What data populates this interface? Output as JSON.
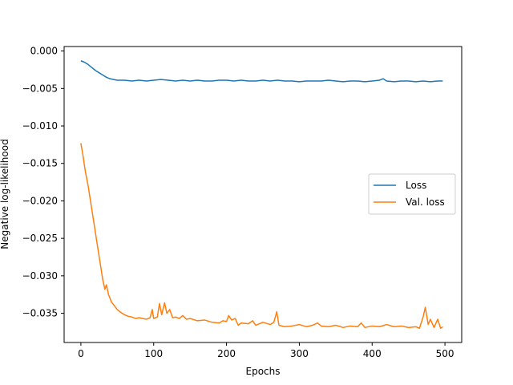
{
  "chart_data": {
    "type": "line",
    "title": "",
    "xlabel": "Epochs",
    "ylabel": "Negative log-likelihood",
    "xlim": [
      -23,
      523
    ],
    "ylim": [
      -0.0389,
      0.0006
    ],
    "xticks": [
      0,
      100,
      200,
      300,
      400,
      500
    ],
    "xtick_labels": [
      "0",
      "100",
      "200",
      "300",
      "400",
      "500"
    ],
    "yticks": [
      0.0,
      -0.005,
      -0.01,
      -0.015,
      -0.02,
      -0.025,
      -0.03,
      -0.035
    ],
    "ytick_labels": [
      "0.000",
      "−0.005",
      "−0.010",
      "−0.015",
      "−0.020",
      "−0.025",
      "−0.030",
      "−0.035"
    ],
    "grid": false,
    "legend_position": "center-right",
    "series": [
      {
        "name": "Loss",
        "color": "#1f77b4",
        "points": [
          [
            0,
            -0.0013
          ],
          [
            5,
            -0.0015
          ],
          [
            10,
            -0.0018
          ],
          [
            15,
            -0.0022
          ],
          [
            20,
            -0.0026
          ],
          [
            25,
            -0.0029
          ],
          [
            30,
            -0.0032
          ],
          [
            35,
            -0.0035
          ],
          [
            40,
            -0.0037
          ],
          [
            45,
            -0.0038
          ],
          [
            50,
            -0.0039
          ],
          [
            60,
            -0.0039
          ],
          [
            70,
            -0.004
          ],
          [
            80,
            -0.0039
          ],
          [
            90,
            -0.004
          ],
          [
            100,
            -0.0039
          ],
          [
            110,
            -0.0038
          ],
          [
            120,
            -0.0039
          ],
          [
            130,
            -0.004
          ],
          [
            140,
            -0.0039
          ],
          [
            150,
            -0.004
          ],
          [
            160,
            -0.0039
          ],
          [
            170,
            -0.004
          ],
          [
            180,
            -0.004
          ],
          [
            190,
            -0.0039
          ],
          [
            200,
            -0.0039
          ],
          [
            210,
            -0.004
          ],
          [
            220,
            -0.0039
          ],
          [
            230,
            -0.004
          ],
          [
            240,
            -0.004
          ],
          [
            250,
            -0.0039
          ],
          [
            260,
            -0.004
          ],
          [
            270,
            -0.0039
          ],
          [
            280,
            -0.004
          ],
          [
            290,
            -0.004
          ],
          [
            300,
            -0.0041
          ],
          [
            310,
            -0.004
          ],
          [
            320,
            -0.004
          ],
          [
            330,
            -0.004
          ],
          [
            340,
            -0.0039
          ],
          [
            350,
            -0.004
          ],
          [
            360,
            -0.0041
          ],
          [
            370,
            -0.004
          ],
          [
            380,
            -0.004
          ],
          [
            390,
            -0.0041
          ],
          [
            400,
            -0.004
          ],
          [
            410,
            -0.0039
          ],
          [
            415,
            -0.0037
          ],
          [
            420,
            -0.004
          ],
          [
            430,
            -0.0041
          ],
          [
            440,
            -0.004
          ],
          [
            450,
            -0.004
          ],
          [
            460,
            -0.0041
          ],
          [
            470,
            -0.004
          ],
          [
            480,
            -0.0041
          ],
          [
            490,
            -0.004
          ],
          [
            497,
            -0.004
          ]
        ]
      },
      {
        "name": "Val. loss",
        "color": "#ff7f0e",
        "points": [
          [
            0,
            -0.0123
          ],
          [
            3,
            -0.014
          ],
          [
            6,
            -0.016
          ],
          [
            10,
            -0.018
          ],
          [
            14,
            -0.0205
          ],
          [
            18,
            -0.023
          ],
          [
            22,
            -0.0255
          ],
          [
            26,
            -0.028
          ],
          [
            30,
            -0.0305
          ],
          [
            33,
            -0.0318
          ],
          [
            35,
            -0.0312
          ],
          [
            38,
            -0.0325
          ],
          [
            42,
            -0.0335
          ],
          [
            46,
            -0.034
          ],
          [
            50,
            -0.0345
          ],
          [
            55,
            -0.0349
          ],
          [
            60,
            -0.0352
          ],
          [
            65,
            -0.0354
          ],
          [
            70,
            -0.0355
          ],
          [
            75,
            -0.0357
          ],
          [
            80,
            -0.0356
          ],
          [
            85,
            -0.0357
          ],
          [
            90,
            -0.0358
          ],
          [
            95,
            -0.0356
          ],
          [
            98,
            -0.0345
          ],
          [
            100,
            -0.0357
          ],
          [
            105,
            -0.0355
          ],
          [
            108,
            -0.0337
          ],
          [
            111,
            -0.0352
          ],
          [
            115,
            -0.0336
          ],
          [
            118,
            -0.035
          ],
          [
            122,
            -0.0345
          ],
          [
            126,
            -0.0356
          ],
          [
            130,
            -0.0355
          ],
          [
            135,
            -0.0357
          ],
          [
            140,
            -0.0353
          ],
          [
            145,
            -0.0358
          ],
          [
            150,
            -0.0357
          ],
          [
            160,
            -0.036
          ],
          [
            170,
            -0.0359
          ],
          [
            180,
            -0.0362
          ],
          [
            190,
            -0.0363
          ],
          [
            195,
            -0.036
          ],
          [
            200,
            -0.0361
          ],
          [
            203,
            -0.0353
          ],
          [
            207,
            -0.0359
          ],
          [
            212,
            -0.0357
          ],
          [
            216,
            -0.0366
          ],
          [
            220,
            -0.0363
          ],
          [
            230,
            -0.0364
          ],
          [
            236,
            -0.036
          ],
          [
            240,
            -0.0366
          ],
          [
            250,
            -0.0362
          ],
          [
            260,
            -0.0365
          ],
          [
            265,
            -0.0362
          ],
          [
            269,
            -0.0348
          ],
          [
            272,
            -0.0366
          ],
          [
            280,
            -0.0368
          ],
          [
            290,
            -0.0367
          ],
          [
            300,
            -0.0365
          ],
          [
            310,
            -0.0368
          ],
          [
            318,
            -0.0366
          ],
          [
            325,
            -0.0363
          ],
          [
            330,
            -0.0367
          ],
          [
            340,
            -0.0368
          ],
          [
            350,
            -0.0366
          ],
          [
            360,
            -0.0369
          ],
          [
            370,
            -0.0367
          ],
          [
            380,
            -0.0368
          ],
          [
            385,
            -0.0363
          ],
          [
            390,
            -0.0369
          ],
          [
            400,
            -0.0367
          ],
          [
            410,
            -0.0368
          ],
          [
            420,
            -0.0365
          ],
          [
            430,
            -0.0368
          ],
          [
            440,
            -0.0367
          ],
          [
            450,
            -0.0369
          ],
          [
            460,
            -0.0368
          ],
          [
            465,
            -0.037
          ],
          [
            470,
            -0.0355
          ],
          [
            473,
            -0.0342
          ],
          [
            477,
            -0.0365
          ],
          [
            480,
            -0.0358
          ],
          [
            485,
            -0.0369
          ],
          [
            490,
            -0.0358
          ],
          [
            494,
            -0.037
          ],
          [
            497,
            -0.0368
          ]
        ]
      }
    ]
  }
}
